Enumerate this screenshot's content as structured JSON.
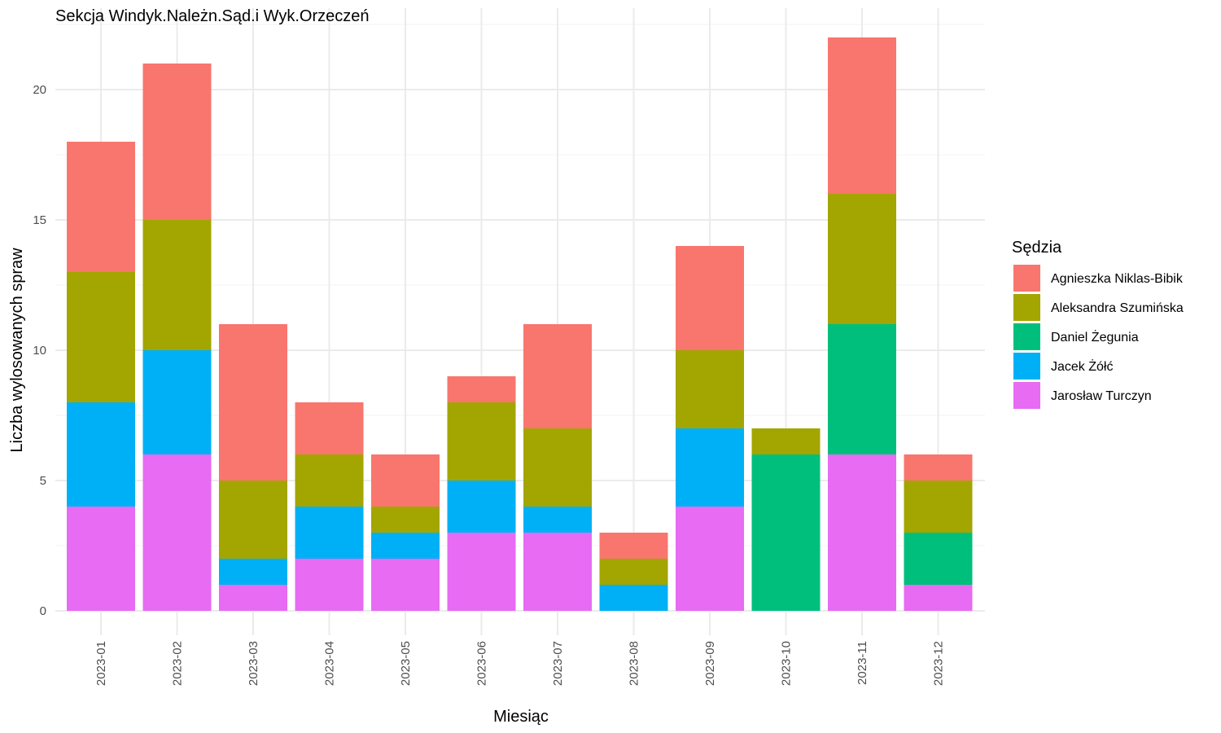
{
  "chart_data": {
    "type": "bar",
    "stacked": true,
    "title": "Sekcja Windyk.Należn.Sąd.i Wyk.Orzeczeń",
    "xlabel": "Miesiąc",
    "ylabel": "Liczba wylosowanych spraw",
    "ylim": [
      0,
      23
    ],
    "yticks": [
      0,
      5,
      10,
      15,
      20
    ],
    "grid": true,
    "legend_position": "right",
    "legend_title": "Sędzia",
    "categories": [
      "2023-01",
      "2023-02",
      "2023-03",
      "2023-04",
      "2023-05",
      "2023-06",
      "2023-07",
      "2023-08",
      "2023-09",
      "2023-10",
      "2023-11",
      "2023-12"
    ],
    "series": [
      {
        "name": "Agnieszka Niklas-Bibik",
        "color": "#F8766D",
        "values": [
          5,
          6,
          6,
          2,
          2,
          1,
          4,
          1,
          4,
          0,
          6,
          1
        ]
      },
      {
        "name": "Aleksandra Szumińska",
        "color": "#A3A500",
        "values": [
          5,
          5,
          3,
          2,
          1,
          3,
          3,
          1,
          3,
          1,
          5,
          2
        ]
      },
      {
        "name": "Daniel Żegunia",
        "color": "#00BF7D",
        "values": [
          0,
          0,
          0,
          0,
          0,
          0,
          0,
          0,
          0,
          6,
          5,
          2
        ]
      },
      {
        "name": "Jacek Żółć",
        "color": "#00B0F6",
        "values": [
          4,
          4,
          1,
          2,
          1,
          2,
          1,
          1,
          3,
          0,
          0,
          0
        ]
      },
      {
        "name": "Jarosław Turczyn",
        "color": "#E76BF3",
        "values": [
          4,
          6,
          1,
          2,
          2,
          3,
          3,
          0,
          4,
          0,
          6,
          1
        ]
      }
    ]
  }
}
